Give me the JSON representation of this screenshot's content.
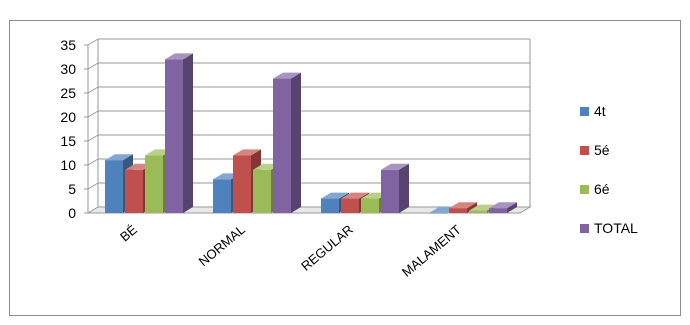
{
  "chart_data": {
    "type": "bar",
    "three_d": true,
    "categories": [
      "BÉ",
      "NORMAL",
      "REGULAR",
      "MALAMENT"
    ],
    "series": [
      {
        "name": "4t",
        "values": [
          11,
          7,
          3,
          0
        ]
      },
      {
        "name": "5é",
        "values": [
          9,
          12,
          3,
          1
        ]
      },
      {
        "name": "6é",
        "values": [
          12,
          9,
          3,
          0.5
        ]
      },
      {
        "name": "TOTAL",
        "values": [
          32,
          28,
          9,
          1
        ]
      }
    ],
    "title": "",
    "xlabel": "",
    "ylabel": "",
    "ylim": [
      0,
      35
    ],
    "yticks": [
      0,
      5,
      10,
      15,
      20,
      25,
      30,
      35
    ],
    "grid": true,
    "legend_position": "right",
    "colors": [
      "#4F81BD",
      "#C0504D",
      "#9BBB59",
      "#8064A2"
    ]
  }
}
